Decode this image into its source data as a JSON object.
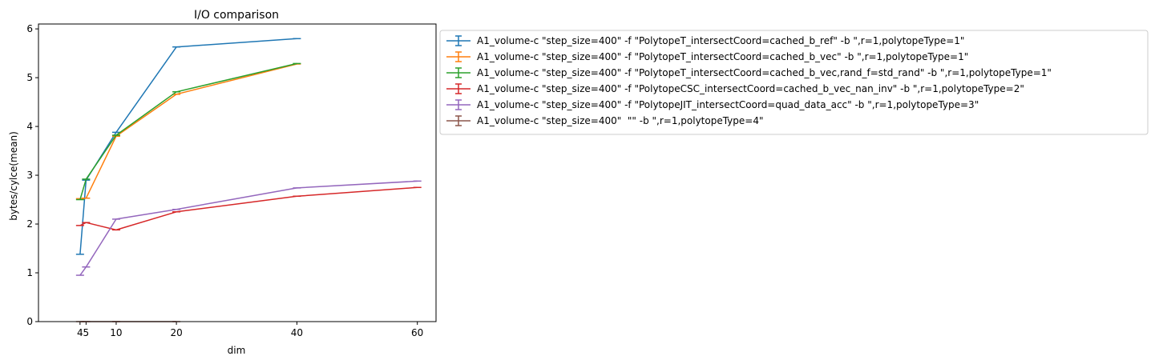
{
  "chart_data": {
    "type": "line",
    "title": "I/O comparison",
    "xlabel": "dim",
    "ylabel": "bytes/cylce(mean)",
    "xlim": [
      -2.9,
      63.1
    ],
    "ylim": [
      0,
      6.1
    ],
    "xticks": [
      4,
      5,
      10,
      20,
      40,
      60
    ],
    "xtick_labels": [
      "4",
      "5",
      "10",
      "20",
      "40",
      "60"
    ],
    "yticks": [
      0,
      1,
      2,
      3,
      4,
      5,
      6
    ],
    "ytick_labels": [
      "0",
      "1",
      "2",
      "3",
      "4",
      "5",
      "6"
    ],
    "grid": false,
    "legend_position": "outside right",
    "series": [
      {
        "name": "A1_volume-c \"step_size=400\" -f \"PolytopeT_intersectCoord=cached_b_ref\" -b \",r=1,polytopeType=1\"",
        "color": "#1f77b4",
        "x": [
          4,
          5,
          10,
          20,
          40
        ],
        "y": [
          1.38,
          2.9,
          3.88,
          5.63,
          5.8
        ]
      },
      {
        "name": "A1_volume-c \"step_size=400\" -f \"PolytopeT_intersectCoord=cached_b_vec\" -b \",r=1,polytopeType=1\"",
        "color": "#ff7f0e",
        "x": [
          4,
          5,
          10,
          20,
          40
        ],
        "y": [
          2.52,
          2.53,
          3.8,
          4.66,
          5.28
        ]
      },
      {
        "name": "A1_volume-c \"step_size=400\" -f \"PolytopeT_intersectCoord=cached_b_vec,rand_f=std_rand\" -b \",r=1,polytopeType=1\"",
        "color": "#2ca02c",
        "x": [
          4,
          5,
          10,
          20,
          40
        ],
        "y": [
          2.5,
          2.92,
          3.82,
          4.71,
          5.29
        ]
      },
      {
        "name": "A1_volume-c \"step_size=400\" -f \"PolytopeCSC_intersectCoord=cached_b_vec_nan_inv\" -b \",r=1,polytopeType=2\"",
        "color": "#d62728",
        "x": [
          4,
          5,
          10,
          20,
          40,
          60
        ],
        "y": [
          1.97,
          2.03,
          1.88,
          2.25,
          2.57,
          2.75
        ]
      },
      {
        "name": "A1_volume-c \"step_size=400\" -f \"PolytopeJIT_intersectCoord=quad_data_acc\" -b \",r=1,polytopeType=3\"",
        "color": "#9467bd",
        "x": [
          4,
          5,
          10,
          20,
          40,
          60
        ],
        "y": [
          0.95,
          1.12,
          2.1,
          2.3,
          2.74,
          2.88
        ]
      },
      {
        "name": "A1_volume-c \"step_size=400\"  \"\" -b \",r=1,polytopeType=4\"",
        "color": "#8c564b",
        "x": [
          4,
          5,
          10,
          20
        ],
        "y": [
          0,
          0,
          0,
          0
        ]
      }
    ]
  }
}
